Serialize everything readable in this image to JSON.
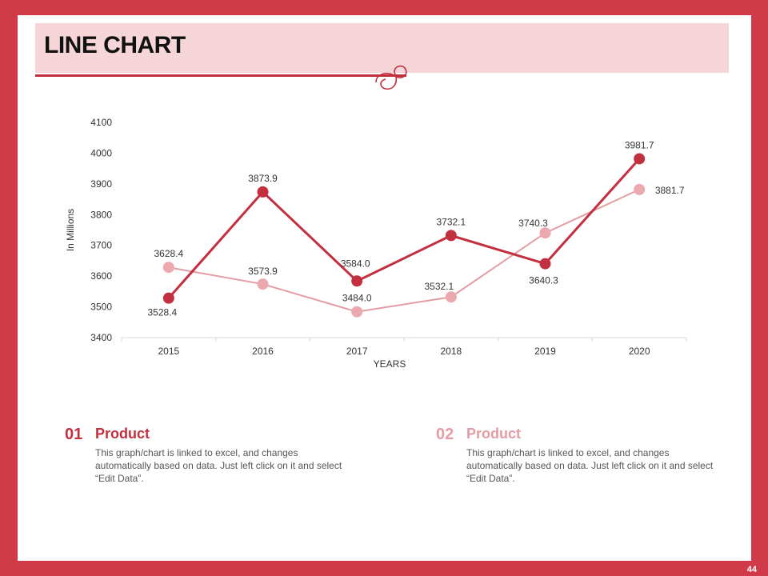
{
  "slide": {
    "title": "LINE CHART",
    "page_number": "44"
  },
  "colors": {
    "frame": "#d13a48",
    "series1": "#c22f3e",
    "series2": "#e49ca3",
    "series2_marker": "#eba8ae",
    "title_band": "#f6d5d8"
  },
  "chart_data": {
    "type": "line",
    "title": "",
    "xlabel": "YEARS",
    "ylabel": "In Millions",
    "categories": [
      "2015",
      "2016",
      "2017",
      "2018",
      "2019",
      "2020"
    ],
    "ylim": [
      3400,
      4100
    ],
    "yticks": [
      3400,
      3500,
      3600,
      3700,
      3800,
      3900,
      4000,
      4100
    ],
    "grid": false,
    "series": [
      {
        "name": "Product 01",
        "values": [
          3528.4,
          3873.9,
          3584.0,
          3732.1,
          3640.3,
          3981.7
        ],
        "labels": [
          "3528.4",
          "3873.9",
          "3584.0",
          "3732.1",
          "3640.3",
          "3981.7"
        ]
      },
      {
        "name": "Product 02",
        "values": [
          3628.4,
          3573.9,
          3484.0,
          3532.1,
          3740.3,
          3881.7
        ],
        "labels": [
          "3628.4",
          "3573.9",
          "3484.0",
          "3532.1",
          "3740.3",
          "3881.7"
        ]
      }
    ]
  },
  "info": [
    {
      "number": "01",
      "heading": "Product",
      "body": "This graph/chart is linked to excel, and changes automatically based on data. Just left click on it and select “Edit Data”."
    },
    {
      "number": "02",
      "heading": "Product",
      "body": "This graph/chart is linked to excel, and changes automatically based on data. Just left click on it and select “Edit Data”."
    }
  ]
}
